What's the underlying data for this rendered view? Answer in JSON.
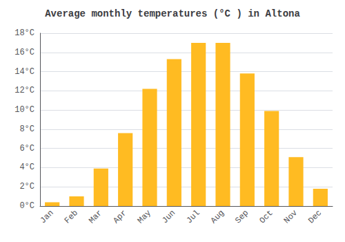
{
  "chart_data": {
    "type": "bar",
    "title": "Average monthly temperatures (°C ) in Altona",
    "categories": [
      "Jan",
      "Feb",
      "Mar",
      "Apr",
      "May",
      "Jun",
      "Jul",
      "Aug",
      "Sep",
      "Oct",
      "Nov",
      "Dec"
    ],
    "values": [
      0.4,
      1.0,
      3.9,
      7.6,
      12.2,
      15.3,
      17.0,
      17.0,
      13.8,
      9.9,
      5.1,
      1.8
    ],
    "color": "#FFBB22",
    "ylim": [
      0,
      18
    ],
    "yticks": [
      {
        "value": 0,
        "label": "0°C"
      },
      {
        "value": 2,
        "label": "2°C"
      },
      {
        "value": 4,
        "label": "4°C"
      },
      {
        "value": 6,
        "label": "6°C"
      },
      {
        "value": 8,
        "label": "8°C"
      },
      {
        "value": 10,
        "label": "10°C"
      },
      {
        "value": 12,
        "label": "12°C"
      },
      {
        "value": 14,
        "label": "14°C"
      },
      {
        "value": 16,
        "label": "16°C"
      },
      {
        "value": 18,
        "label": "18°C"
      }
    ],
    "grid": true
  }
}
